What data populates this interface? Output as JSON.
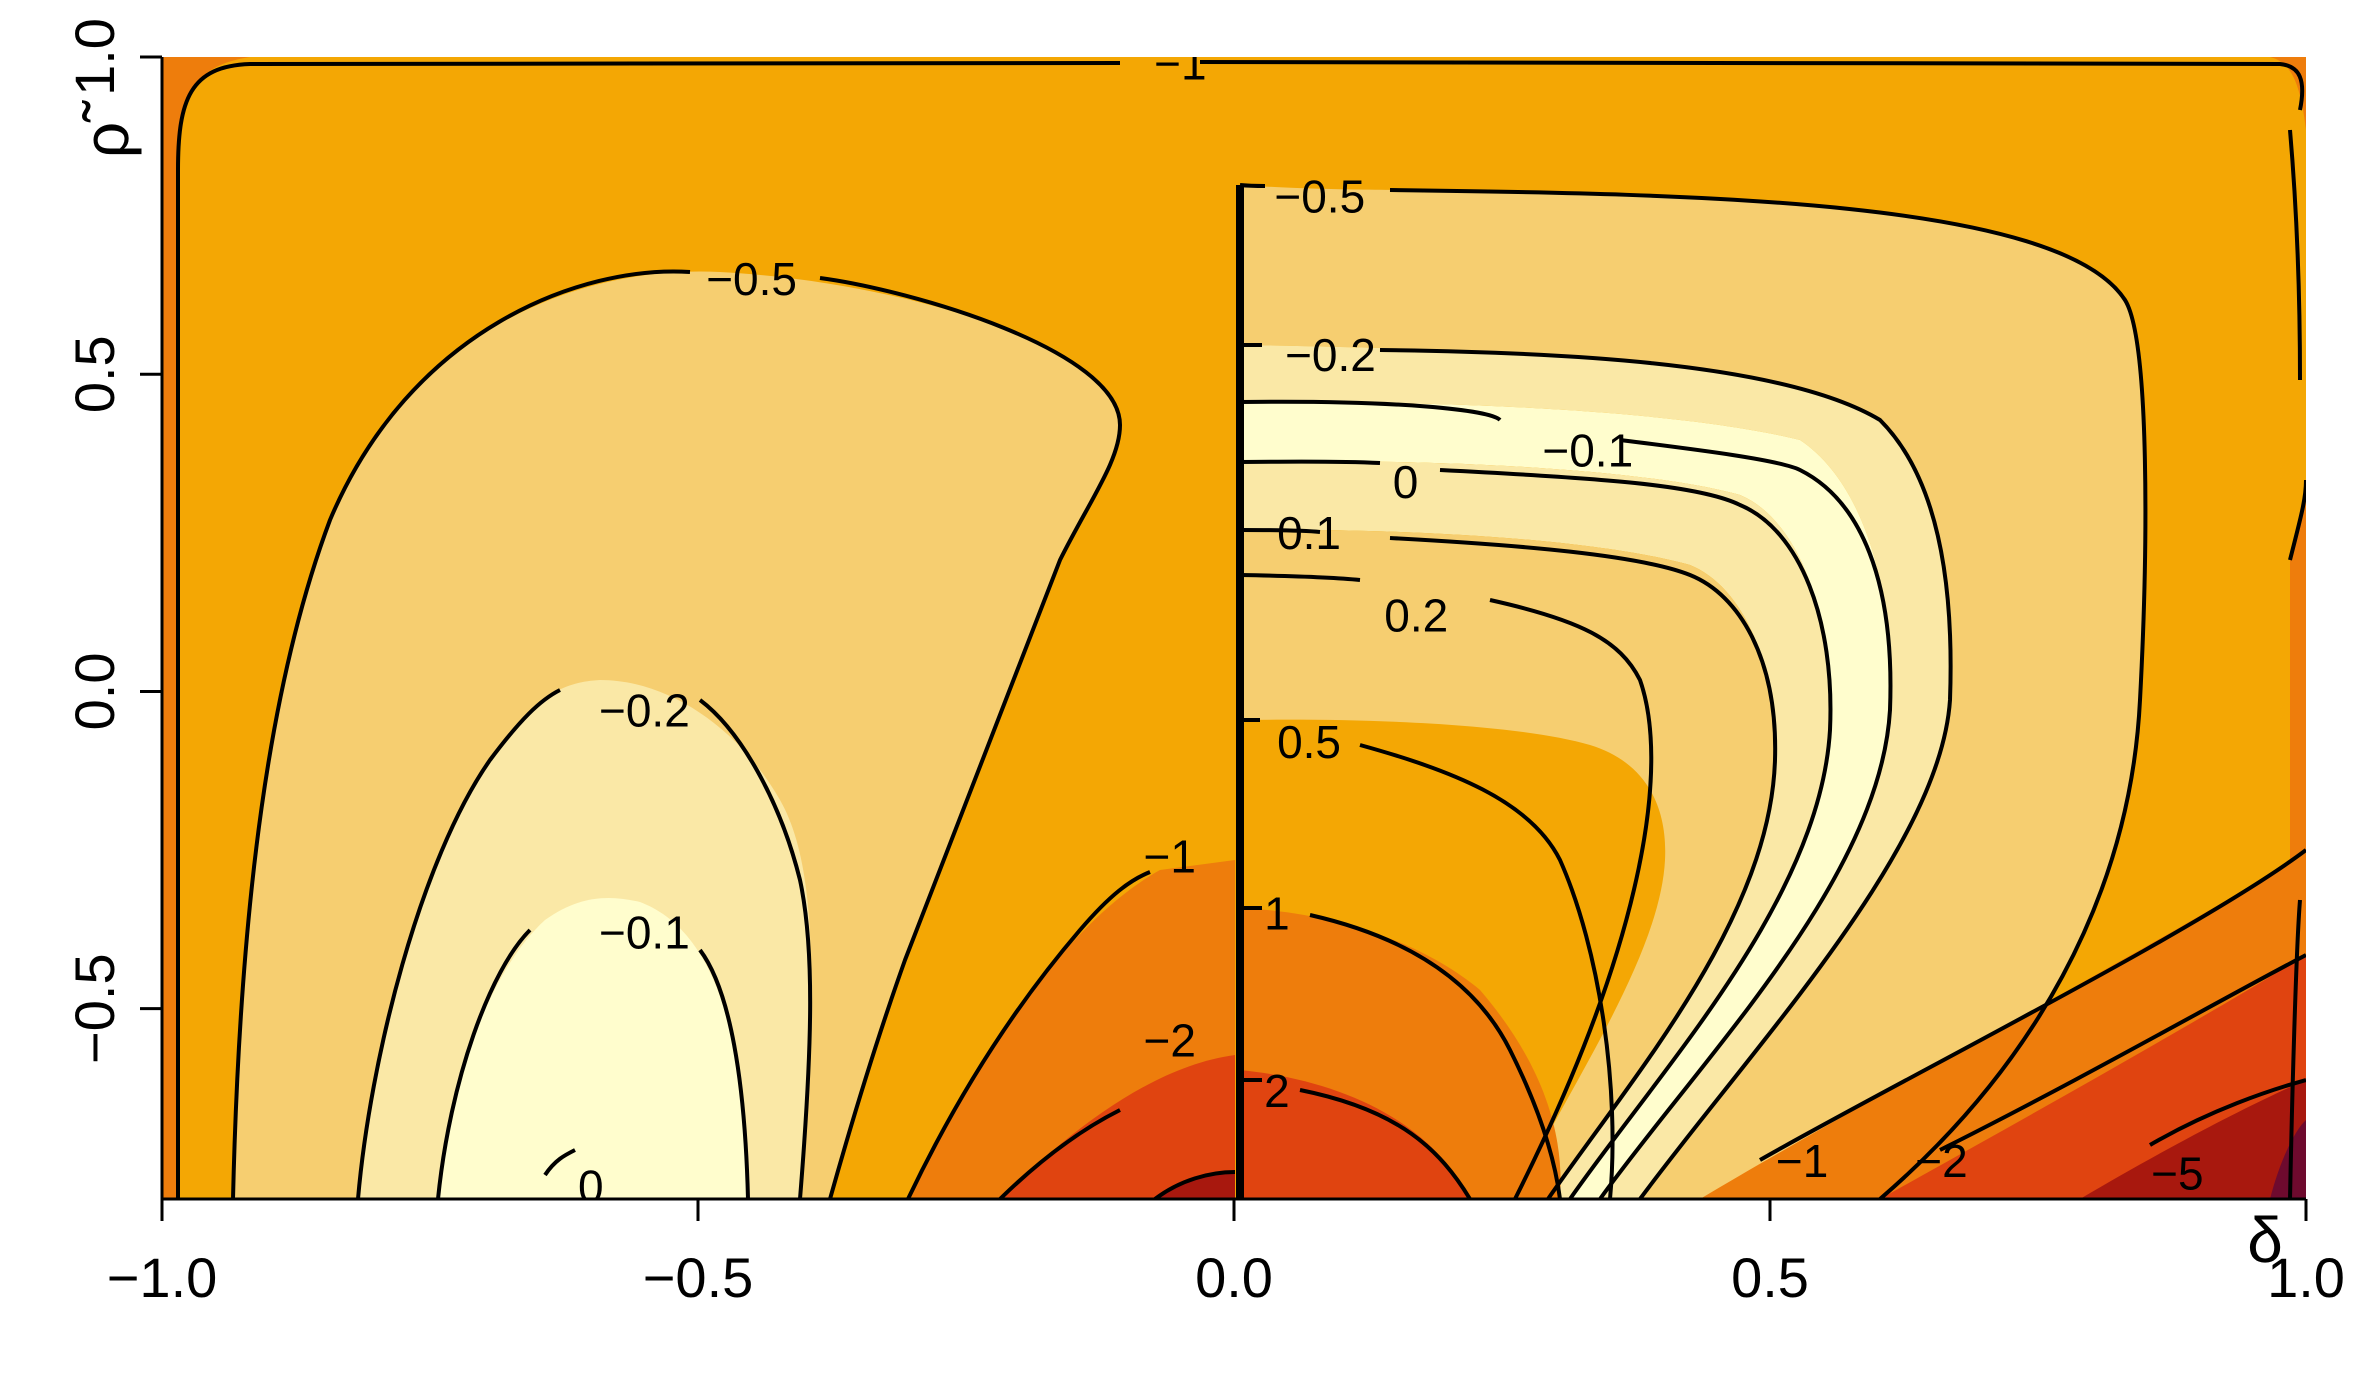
{
  "chart_data": {
    "type": "heatmap",
    "title": "",
    "xlabel": "δ",
    "ylabel": "ρ̃",
    "xlim": [
      -1.0,
      1.0
    ],
    "ylim": [
      -0.8,
      1.0
    ],
    "x_ticks": [
      "−1.0",
      "−0.5",
      "0.0",
      "0.5",
      "1.0"
    ],
    "y_ticks": [
      "−0.5",
      "0.0",
      "0.5",
      "1.0"
    ],
    "grid": false,
    "legend": "none",
    "contour_levels": [
      -5,
      -2,
      -1,
      -0.5,
      -0.2,
      -0.1,
      0,
      0.1,
      0.2,
      0.5,
      1,
      2
    ],
    "colors": {
      "darkest": "#6e0a2e",
      "dark_red": "#a8180e",
      "red": "#e04410",
      "orange": "#ee7d0c",
      "amber": "#f4a704",
      "light_amber": "#f6ce70",
      "pale": "#fae8a6",
      "palest": "#fffdcd"
    },
    "contour_labels": [
      {
        "text": "−1",
        "x": -0.05,
        "y": 0.99
      },
      {
        "text": "−0.5",
        "x": -0.45,
        "y": 0.65
      },
      {
        "text": "−0.2",
        "x": -0.55,
        "y": -0.03
      },
      {
        "text": "−0.1",
        "x": -0.55,
        "y": -0.38
      },
      {
        "text": "0",
        "x": -0.6,
        "y": -0.78
      },
      {
        "text": "−1",
        "x": -0.06,
        "y": -0.26
      },
      {
        "text": "−2",
        "x": -0.06,
        "y": -0.55
      },
      {
        "text": "−0.5",
        "x": 0.08,
        "y": 0.78
      },
      {
        "text": "−0.2",
        "x": 0.09,
        "y": 0.53
      },
      {
        "text": "−0.1",
        "x": 0.33,
        "y": 0.38
      },
      {
        "text": "0",
        "x": 0.16,
        "y": 0.33
      },
      {
        "text": "0.1",
        "x": 0.07,
        "y": 0.25
      },
      {
        "text": "0.2",
        "x": 0.17,
        "y": 0.12
      },
      {
        "text": "0.5",
        "x": 0.07,
        "y": -0.08
      },
      {
        "text": "1",
        "x": 0.04,
        "y": -0.35
      },
      {
        "text": "2",
        "x": 0.04,
        "y": -0.63
      },
      {
        "text": "−1",
        "x": 0.53,
        "y": -0.74
      },
      {
        "text": "−2",
        "x": 0.66,
        "y": -0.74
      },
      {
        "text": "−5",
        "x": 0.88,
        "y": -0.76
      }
    ]
  }
}
